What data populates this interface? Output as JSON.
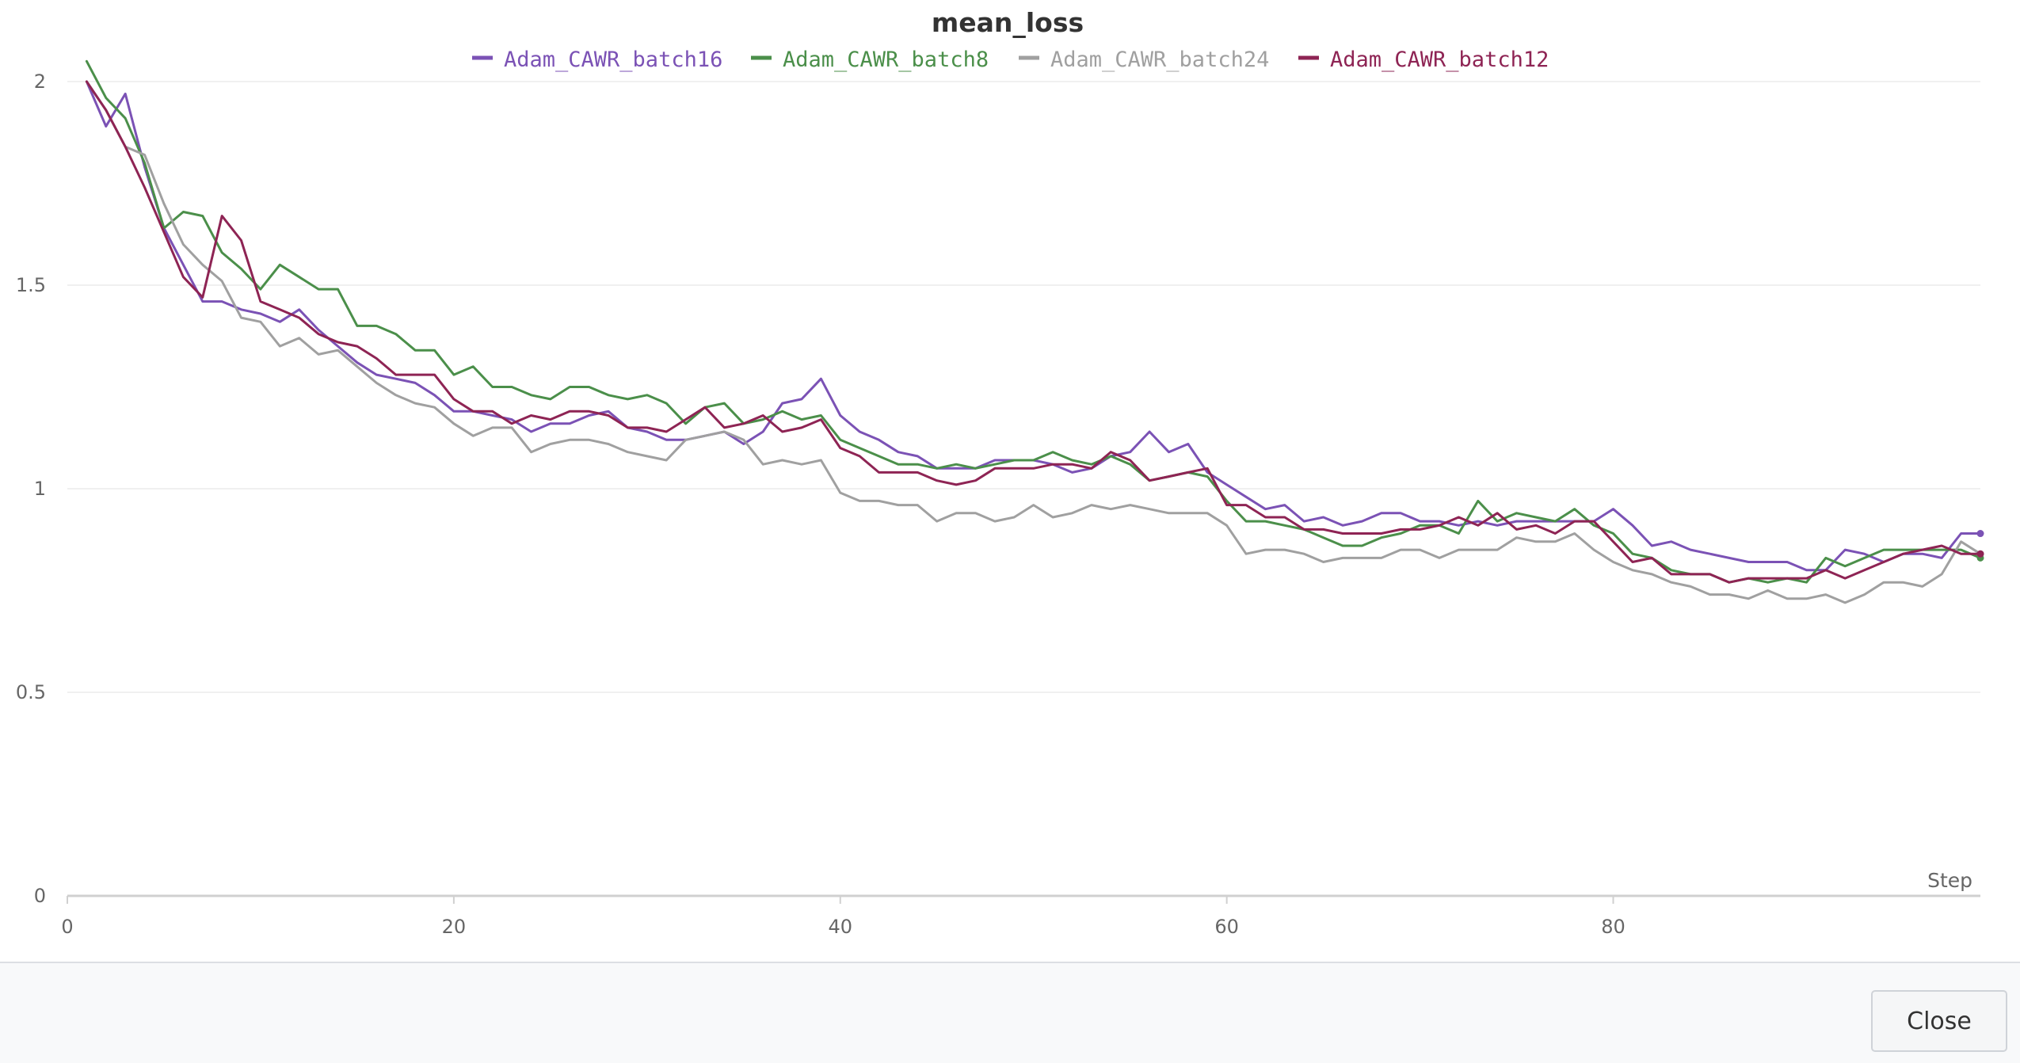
{
  "chart_data": {
    "type": "line",
    "title": "mean_loss",
    "xlabel": "Step",
    "ylabel": "",
    "xlim": [
      0,
      99
    ],
    "ylim": [
      0,
      2
    ],
    "xticks": [
      0,
      20,
      40,
      60,
      80
    ],
    "yticks": [
      0,
      0.5,
      1,
      1.5,
      2
    ],
    "ytick_labels": [
      "0",
      "0.5",
      "1",
      "1.5",
      "2"
    ],
    "grid": true,
    "legend_position": "top-center",
    "series": [
      {
        "name": "Adam_CAWR_batch16",
        "color": "#7b52b5",
        "x": [
          1,
          2,
          3,
          4,
          5,
          6,
          7,
          8,
          9,
          10,
          11,
          12,
          13,
          14,
          15,
          16,
          17,
          18,
          19,
          20,
          21,
          22,
          23,
          24,
          25,
          26,
          27,
          28,
          29,
          30,
          31,
          32,
          33,
          34,
          35,
          36,
          37,
          38,
          39,
          40,
          41,
          42,
          43,
          44,
          45,
          46,
          47,
          48,
          49,
          50,
          51,
          52,
          53,
          54,
          55,
          56,
          57,
          58,
          59,
          60,
          61,
          62,
          63,
          64,
          65,
          66,
          67,
          68,
          69,
          70,
          71,
          72,
          73,
          74,
          75,
          76,
          77,
          78,
          79,
          80,
          81,
          82,
          83,
          84,
          85,
          86,
          87,
          88,
          89,
          90,
          91,
          92,
          93,
          94,
          95,
          96,
          97,
          98,
          99
        ],
        "y": [
          2.0,
          1.89,
          1.97,
          1.79,
          1.64,
          1.55,
          1.46,
          1.46,
          1.44,
          1.43,
          1.41,
          1.44,
          1.39,
          1.35,
          1.31,
          1.28,
          1.27,
          1.26,
          1.23,
          1.19,
          1.19,
          1.18,
          1.17,
          1.14,
          1.16,
          1.16,
          1.18,
          1.19,
          1.15,
          1.14,
          1.12,
          1.12,
          1.13,
          1.14,
          1.11,
          1.14,
          1.21,
          1.22,
          1.27,
          1.18,
          1.14,
          1.12,
          1.09,
          1.08,
          1.05,
          1.05,
          1.05,
          1.07,
          1.07,
          1.07,
          1.06,
          1.04,
          1.05,
          1.08,
          1.09,
          1.14,
          1.09,
          1.11,
          1.04,
          1.01,
          0.98,
          0.95,
          0.96,
          0.92,
          0.93,
          0.91,
          0.92,
          0.94,
          0.94,
          0.92,
          0.92,
          0.91,
          0.92,
          0.91,
          0.92,
          0.92,
          0.92,
          0.92,
          0.92,
          0.95,
          0.91,
          0.86,
          0.87,
          0.85,
          0.84,
          0.83,
          0.82,
          0.82,
          0.82,
          0.8,
          0.8,
          0.85,
          0.84,
          0.82,
          0.84,
          0.84,
          0.83,
          0.89,
          0.89
        ]
      },
      {
        "name": "Adam_CAWR_batch8",
        "color": "#4b8f4a",
        "x": [
          1,
          2,
          3,
          4,
          5,
          6,
          7,
          8,
          9,
          10,
          11,
          12,
          13,
          14,
          15,
          16,
          17,
          18,
          19,
          20,
          21,
          22,
          23,
          24,
          25,
          26,
          27,
          28,
          29,
          30,
          31,
          32,
          33,
          34,
          35,
          36,
          37,
          38,
          39,
          40,
          41,
          42,
          43,
          44,
          45,
          46,
          47,
          48,
          49,
          50,
          51,
          52,
          53,
          54,
          55,
          56,
          57,
          58,
          59,
          60,
          61,
          62,
          63,
          64,
          65,
          66,
          67,
          68,
          69,
          70,
          71,
          72,
          73,
          74,
          75,
          76,
          77,
          78,
          79,
          80,
          81,
          82,
          83,
          84,
          85,
          86,
          87,
          88,
          89,
          90,
          91,
          92,
          93,
          94,
          95,
          96,
          97,
          98,
          99
        ],
        "y": [
          2.05,
          1.96,
          1.91,
          1.8,
          1.64,
          1.68,
          1.67,
          1.58,
          1.54,
          1.49,
          1.55,
          1.52,
          1.49,
          1.49,
          1.4,
          1.4,
          1.38,
          1.34,
          1.34,
          1.28,
          1.3,
          1.25,
          1.25,
          1.23,
          1.22,
          1.25,
          1.25,
          1.23,
          1.22,
          1.23,
          1.21,
          1.16,
          1.2,
          1.21,
          1.16,
          1.17,
          1.19,
          1.17,
          1.18,
          1.12,
          1.1,
          1.08,
          1.06,
          1.06,
          1.05,
          1.06,
          1.05,
          1.06,
          1.07,
          1.07,
          1.09,
          1.07,
          1.06,
          1.08,
          1.06,
          1.02,
          1.03,
          1.04,
          1.03,
          0.97,
          0.92,
          0.92,
          0.91,
          0.9,
          0.88,
          0.86,
          0.86,
          0.88,
          0.89,
          0.91,
          0.91,
          0.89,
          0.97,
          0.92,
          0.94,
          0.93,
          0.92,
          0.95,
          0.91,
          0.89,
          0.84,
          0.83,
          0.8,
          0.79,
          0.79,
          0.77,
          0.78,
          0.77,
          0.78,
          0.77,
          0.83,
          0.81,
          0.83,
          0.85,
          0.85,
          0.85,
          0.85,
          0.85,
          0.83
        ]
      },
      {
        "name": "Adam_CAWR_batch24",
        "color": "#a0a0a0",
        "x": [
          1,
          2,
          3,
          4,
          5,
          6,
          7,
          8,
          9,
          10,
          11,
          12,
          13,
          14,
          15,
          16,
          17,
          18,
          19,
          20,
          21,
          22,
          23,
          24,
          25,
          26,
          27,
          28,
          29,
          30,
          31,
          32,
          33,
          34,
          35,
          36,
          37,
          38,
          39,
          40,
          41,
          42,
          43,
          44,
          45,
          46,
          47,
          48,
          49,
          50,
          51,
          52,
          53,
          54,
          55,
          56,
          57,
          58,
          59,
          60,
          61,
          62,
          63,
          64,
          65,
          66,
          67,
          68,
          69,
          70,
          71,
          72,
          73,
          74,
          75,
          76,
          77,
          78,
          79,
          80,
          81,
          82,
          83,
          84,
          85,
          86,
          87,
          88,
          89,
          90,
          91,
          92,
          93,
          94,
          95,
          96,
          97,
          98,
          99
        ],
        "y": [
          2.0,
          1.93,
          1.84,
          1.82,
          1.7,
          1.6,
          1.55,
          1.51,
          1.42,
          1.41,
          1.35,
          1.37,
          1.33,
          1.34,
          1.3,
          1.26,
          1.23,
          1.21,
          1.2,
          1.16,
          1.13,
          1.15,
          1.15,
          1.09,
          1.11,
          1.12,
          1.12,
          1.11,
          1.09,
          1.08,
          1.07,
          1.12,
          1.13,
          1.14,
          1.12,
          1.06,
          1.07,
          1.06,
          1.07,
          0.99,
          0.97,
          0.97,
          0.96,
          0.96,
          0.92,
          0.94,
          0.94,
          0.92,
          0.93,
          0.96,
          0.93,
          0.94,
          0.96,
          0.95,
          0.96,
          0.95,
          0.94,
          0.94,
          0.94,
          0.91,
          0.84,
          0.85,
          0.85,
          0.84,
          0.82,
          0.83,
          0.83,
          0.83,
          0.85,
          0.85,
          0.83,
          0.85,
          0.85,
          0.85,
          0.88,
          0.87,
          0.87,
          0.89,
          0.85,
          0.82,
          0.8,
          0.79,
          0.77,
          0.76,
          0.74,
          0.74,
          0.73,
          0.75,
          0.73,
          0.73,
          0.74,
          0.72,
          0.74,
          0.77,
          0.77,
          0.76,
          0.79,
          0.87,
          0.84
        ]
      },
      {
        "name": "Adam_CAWR_batch12",
        "color": "#8e2454",
        "x": [
          1,
          2,
          3,
          4,
          5,
          6,
          7,
          8,
          9,
          10,
          11,
          12,
          13,
          14,
          15,
          16,
          17,
          18,
          19,
          20,
          21,
          22,
          23,
          24,
          25,
          26,
          27,
          28,
          29,
          30,
          31,
          32,
          33,
          34,
          35,
          36,
          37,
          38,
          39,
          40,
          41,
          42,
          43,
          44,
          45,
          46,
          47,
          48,
          49,
          50,
          51,
          52,
          53,
          54,
          55,
          56,
          57,
          58,
          59,
          60,
          61,
          62,
          63,
          64,
          65,
          66,
          67,
          68,
          69,
          70,
          71,
          72,
          73,
          74,
          75,
          76,
          77,
          78,
          79,
          80,
          81,
          82,
          83,
          84,
          85,
          86,
          87,
          88,
          89,
          90,
          91,
          92,
          93,
          94,
          95,
          96,
          97,
          98,
          99
        ],
        "y": [
          2.0,
          1.93,
          1.84,
          1.74,
          1.63,
          1.52,
          1.47,
          1.67,
          1.61,
          1.46,
          1.44,
          1.42,
          1.38,
          1.36,
          1.35,
          1.32,
          1.28,
          1.28,
          1.28,
          1.22,
          1.19,
          1.19,
          1.16,
          1.18,
          1.17,
          1.19,
          1.19,
          1.18,
          1.15,
          1.15,
          1.14,
          1.17,
          1.2,
          1.15,
          1.16,
          1.18,
          1.14,
          1.15,
          1.17,
          1.1,
          1.08,
          1.04,
          1.04,
          1.04,
          1.02,
          1.01,
          1.02,
          1.05,
          1.05,
          1.05,
          1.06,
          1.06,
          1.05,
          1.09,
          1.07,
          1.02,
          1.03,
          1.04,
          1.05,
          0.96,
          0.96,
          0.93,
          0.93,
          0.9,
          0.9,
          0.89,
          0.89,
          0.89,
          0.9,
          0.9,
          0.91,
          0.93,
          0.91,
          0.94,
          0.9,
          0.91,
          0.89,
          0.92,
          0.92,
          0.87,
          0.82,
          0.83,
          0.79,
          0.79,
          0.79,
          0.77,
          0.78,
          0.78,
          0.78,
          0.78,
          0.8,
          0.78,
          0.8,
          0.82,
          0.84,
          0.85,
          0.86,
          0.84,
          0.84
        ]
      }
    ]
  },
  "footer": {
    "close_label": "Close"
  }
}
